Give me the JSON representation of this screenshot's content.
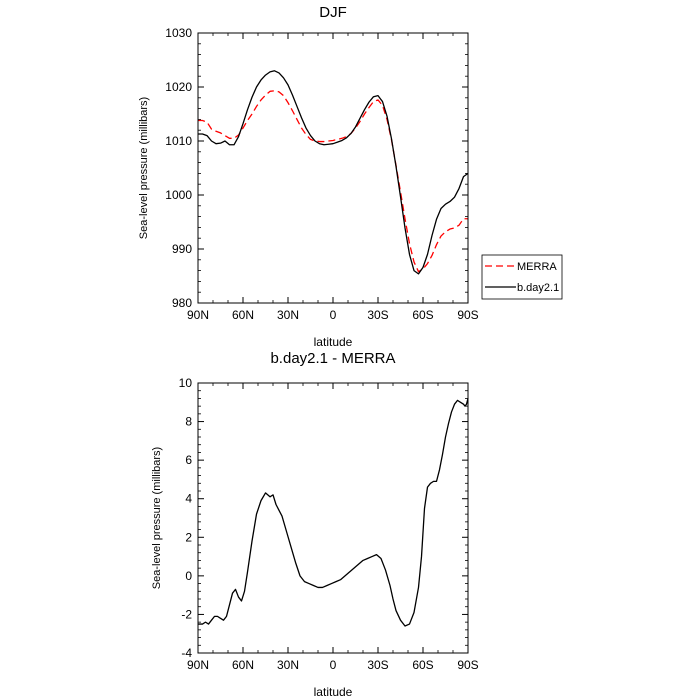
{
  "chart_data": [
    {
      "type": "line",
      "title": "DJF",
      "xlabel": "latitude",
      "ylabel": "Sea-level pressure (millibars)",
      "xlim": [
        90,
        -90
      ],
      "ylim": [
        980,
        1030
      ],
      "x_ticks": [
        90,
        60,
        30,
        0,
        -30,
        -60,
        -90
      ],
      "x_tick_labels": [
        "90N",
        "60N",
        "30N",
        "0",
        "30S",
        "60S",
        "90S"
      ],
      "y_ticks": [
        980,
        990,
        1000,
        1010,
        1020,
        1030
      ],
      "y_tick_labels": [
        "980",
        "990",
        "1000",
        "1010",
        "1020",
        "1030"
      ],
      "legend_position": "right",
      "series": [
        {
          "name": "MERRA",
          "color": "#ff0000",
          "style": "dashed",
          "x": [
            90,
            87,
            84,
            81,
            78,
            75,
            72,
            69,
            66,
            63,
            60,
            57,
            54,
            51,
            48,
            45,
            42,
            39,
            36,
            33,
            30,
            27,
            24,
            21,
            18,
            15,
            12,
            9,
            6,
            3,
            0,
            -3,
            -6,
            -9,
            -12,
            -15,
            -18,
            -21,
            -24,
            -27,
            -30,
            -33,
            -36,
            -39,
            -42,
            -45,
            -48,
            -51,
            -54,
            -57,
            -60,
            -63,
            -66,
            -69,
            -72,
            -75,
            -78,
            -81,
            -84,
            -87,
            -90
          ],
          "y": [
            1013.8,
            1013.8,
            1013.5,
            1012.2,
            1011.8,
            1011.5,
            1011,
            1010.5,
            1010.5,
            1011.1,
            1012.4,
            1013.8,
            1015,
            1016.4,
            1017.6,
            1018.5,
            1019.2,
            1019.3,
            1019.1,
            1018.4,
            1017.1,
            1015.6,
            1014,
            1012.4,
            1011.2,
            1010.3,
            1010,
            1009.9,
            1009.9,
            1010,
            1010.1,
            1010.3,
            1010.5,
            1010.8,
            1011.4,
            1012.4,
            1013.6,
            1015,
            1016.2,
            1017.3,
            1017.6,
            1016.6,
            1014,
            1010.2,
            1005.5,
            1000.6,
            995.6,
            991,
            987.6,
            985.8,
            986.3,
            987.3,
            988.8,
            990.8,
            992.4,
            993.2,
            993.7,
            993.9,
            994.4,
            995.6,
            995.6
          ]
        },
        {
          "name": "b.day2.1",
          "color": "#000000",
          "style": "solid",
          "x": [
            90,
            87,
            84,
            81,
            78,
            75,
            72,
            69,
            66,
            63,
            60,
            57,
            54,
            51,
            48,
            45,
            42,
            39,
            36,
            33,
            30,
            27,
            24,
            21,
            18,
            15,
            12,
            9,
            6,
            3,
            0,
            -3,
            -6,
            -9,
            -12,
            -15,
            -18,
            -21,
            -24,
            -27,
            -30,
            -33,
            -36,
            -39,
            -42,
            -45,
            -48,
            -51,
            -54,
            -57,
            -60,
            -63,
            -66,
            -69,
            -72,
            -75,
            -78,
            -81,
            -84,
            -87,
            -90
          ],
          "y": [
            1011.3,
            1011.3,
            1011,
            1010,
            1009.5,
            1009.6,
            1010,
            1009.3,
            1009.3,
            1010.8,
            1013.2,
            1015.8,
            1018.1,
            1020,
            1021.3,
            1022.2,
            1022.8,
            1023,
            1022.6,
            1021.7,
            1020.4,
            1018.5,
            1016.4,
            1014.3,
            1012.4,
            1011,
            1010,
            1009.5,
            1009.3,
            1009.4,
            1009.5,
            1009.8,
            1010.1,
            1010.6,
            1011.4,
            1012.6,
            1014.2,
            1015.8,
            1017.2,
            1018.2,
            1018.4,
            1017.3,
            1014.6,
            1010.4,
            1005.3,
            999.7,
            993.9,
            989,
            986,
            985.4,
            986.6,
            989,
            992.5,
            995.5,
            997.5,
            998.3,
            998.8,
            999.6,
            1001.2,
            1003.4,
            1004
          ]
        }
      ]
    },
    {
      "type": "line",
      "title": "b.day2.1 - MERRA",
      "xlabel": "latitude",
      "ylabel": "Sea-level pressure (millibars)",
      "xlim": [
        90,
        -90
      ],
      "ylim": [
        -4,
        10
      ],
      "x_ticks": [
        90,
        60,
        30,
        0,
        -30,
        -60,
        -90
      ],
      "x_tick_labels": [
        "90N",
        "60N",
        "30N",
        "0",
        "30S",
        "60S",
        "90S"
      ],
      "y_ticks": [
        -4,
        -2,
        0,
        2,
        4,
        6,
        8,
        10
      ],
      "y_tick_labels": [
        "-4",
        "-2",
        "0",
        "2",
        "4",
        "6",
        "8",
        "10"
      ],
      "series": [
        {
          "name": "b.day2.1 - MERRA",
          "color": "#000000",
          "style": "solid",
          "x": [
            90,
            87,
            85,
            83,
            81,
            79,
            77,
            75,
            73,
            71,
            69,
            67,
            65,
            63,
            61,
            59,
            57,
            54,
            51,
            48,
            45,
            42,
            40,
            38,
            36,
            34,
            31,
            28,
            25,
            22,
            19,
            16,
            13,
            10,
            7,
            4,
            1,
            -2,
            -5,
            -8,
            -11,
            -14,
            -17,
            -20,
            -23,
            -26,
            -29,
            -32,
            -35,
            -38,
            -40,
            -42,
            -45,
            -48,
            -51,
            -54,
            -57,
            -59,
            -61,
            -63,
            -65,
            -67,
            -69,
            -71,
            -73,
            -75,
            -77,
            -79,
            -81,
            -83,
            -85,
            -87,
            -88,
            -89,
            -90
          ],
          "y": [
            -2.5,
            -2.5,
            -2.4,
            -2.5,
            -2.3,
            -2.1,
            -2.1,
            -2.2,
            -2.3,
            -2.1,
            -1.5,
            -0.9,
            -0.7,
            -1.1,
            -1.3,
            -0.8,
            0.2,
            1.8,
            3.2,
            3.9,
            4.3,
            4.1,
            4.2,
            3.7,
            3.4,
            3.1,
            2.3,
            1.5,
            0.7,
            0,
            -0.3,
            -0.4,
            -0.5,
            -0.6,
            -0.6,
            -0.5,
            -0.4,
            -0.3,
            -0.2,
            0,
            0.2,
            0.4,
            0.6,
            0.8,
            0.9,
            1,
            1.1,
            0.9,
            0.3,
            -0.5,
            -1.2,
            -1.8,
            -2.3,
            -2.6,
            -2.5,
            -1.9,
            -0.6,
            1,
            3.5,
            4.6,
            4.8,
            4.9,
            4.9,
            5.5,
            6.3,
            7.2,
            7.9,
            8.5,
            8.9,
            9.1,
            9,
            8.9,
            8.8,
            8.9,
            9.2
          ]
        }
      ]
    }
  ]
}
